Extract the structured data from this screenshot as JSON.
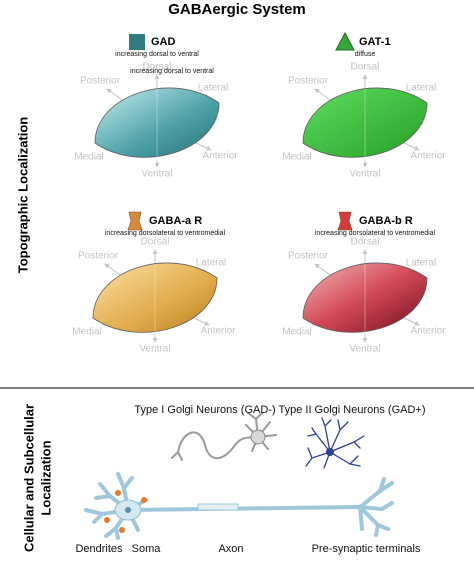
{
  "title": "GABAergic System",
  "section_labels": {
    "topographic": "Topographic Localization",
    "cellular": [
      "Cellular and Subcellular",
      "Localization"
    ]
  },
  "panels": [
    {
      "name": "GAD",
      "notes": [
        "increasing dorsal to ventral",
        "increasing dorsal to ventral"
      ],
      "axes": [
        "Dorsal",
        "Lateral",
        "Posterior",
        "Medial",
        "Anterior",
        "Ventral"
      ]
    },
    {
      "name": "GAT-1",
      "notes": [
        "diffuse"
      ],
      "axes": [
        "Dorsal",
        "Lateral",
        "Posterior",
        "Medial",
        "Anterior",
        "Ventral"
      ]
    },
    {
      "name": "GABA-a R",
      "notes": [
        "increasing dorsolateral to ventromedial"
      ],
      "axes": [
        "Dorsal",
        "Lateral",
        "Posterior",
        "Medial",
        "Anterior",
        "Ventral"
      ]
    },
    {
      "name": "GABA-b R",
      "notes": [
        "increasing dorsolateral to ventromedial"
      ],
      "axes": [
        "Dorsal",
        "Lateral",
        "Posterior",
        "Medial",
        "Anterior",
        "Ventral"
      ]
    }
  ],
  "neurons": {
    "type_1": "Type I Golgi Neurons (GAD-)",
    "type_2": "Type II Golgi Neurons (GAD+)",
    "parts": [
      "Dendrites",
      "Soma",
      "Axon",
      "Pre-synaptic terminals"
    ]
  }
}
